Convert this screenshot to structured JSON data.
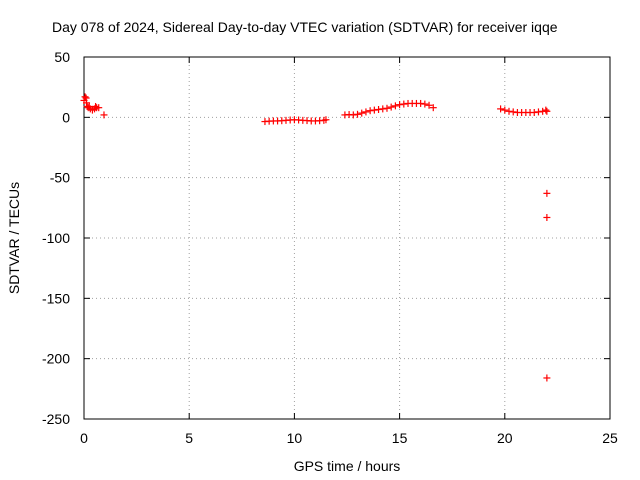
{
  "chart_data": {
    "type": "scatter",
    "title": "Day 078 of 2024, Sidereal Day-to-day VTEC variation (SDTVAR) for receiver iqqe",
    "xlabel": "GPS time / hours",
    "ylabel": "SDTVAR / TECUs",
    "xlim": [
      0,
      25
    ],
    "ylim": [
      -250,
      50
    ],
    "xticks": [
      0,
      5,
      10,
      15,
      20,
      25
    ],
    "yticks": [
      -250,
      -200,
      -150,
      -100,
      -50,
      0,
      50
    ],
    "grid": true,
    "marker": "+",
    "series_color": "#ff0000",
    "series": [
      {
        "points": [
          [
            0.0,
            14
          ],
          [
            0.05,
            17
          ],
          [
            0.1,
            16
          ],
          [
            0.12,
            12
          ],
          [
            0.15,
            9
          ],
          [
            0.2,
            8
          ],
          [
            0.25,
            9
          ],
          [
            0.3,
            7
          ],
          [
            0.4,
            6
          ],
          [
            0.5,
            7
          ],
          [
            0.55,
            9
          ],
          [
            0.6,
            8
          ],
          [
            0.7,
            8
          ],
          [
            0.95,
            2
          ],
          [
            8.6,
            -3.5
          ],
          [
            8.8,
            -3.2
          ],
          [
            9.0,
            -3.0
          ],
          [
            9.2,
            -3.0
          ],
          [
            9.4,
            -2.8
          ],
          [
            9.6,
            -2.5
          ],
          [
            9.8,
            -2.2
          ],
          [
            10.0,
            -2.0
          ],
          [
            10.2,
            -2.2
          ],
          [
            10.4,
            -2.5
          ],
          [
            10.6,
            -2.7
          ],
          [
            10.8,
            -3.0
          ],
          [
            11.0,
            -3.0
          ],
          [
            11.2,
            -2.8
          ],
          [
            11.4,
            -2.5
          ],
          [
            11.5,
            -2.0
          ],
          [
            12.4,
            2.0
          ],
          [
            12.6,
            2.3
          ],
          [
            12.8,
            2.0
          ],
          [
            13.0,
            2.5
          ],
          [
            13.2,
            3.5
          ],
          [
            13.4,
            4.5
          ],
          [
            13.6,
            5.5
          ],
          [
            13.8,
            6.0
          ],
          [
            14.0,
            6.5
          ],
          [
            14.2,
            7.0
          ],
          [
            14.4,
            7.5
          ],
          [
            14.6,
            8.5
          ],
          [
            14.8,
            9.5
          ],
          [
            15.0,
            10.5
          ],
          [
            15.2,
            11.0
          ],
          [
            15.4,
            11.5
          ],
          [
            15.6,
            11.5
          ],
          [
            15.8,
            11.5
          ],
          [
            16.0,
            11.5
          ],
          [
            16.2,
            11.0
          ],
          [
            16.4,
            10.0
          ],
          [
            16.6,
            8.0
          ],
          [
            19.8,
            7.0
          ],
          [
            20.0,
            6.0
          ],
          [
            20.2,
            5.0
          ],
          [
            20.4,
            4.5
          ],
          [
            20.6,
            4.0
          ],
          [
            20.8,
            4.0
          ],
          [
            21.0,
            4.0
          ],
          [
            21.2,
            4.0
          ],
          [
            21.4,
            4.0
          ],
          [
            21.6,
            4.5
          ],
          [
            21.8,
            5.0
          ],
          [
            21.95,
            6.0
          ],
          [
            22.0,
            5.0
          ],
          [
            22.0,
            -63
          ],
          [
            22.0,
            -83
          ],
          [
            22.0,
            -216
          ]
        ]
      }
    ]
  }
}
